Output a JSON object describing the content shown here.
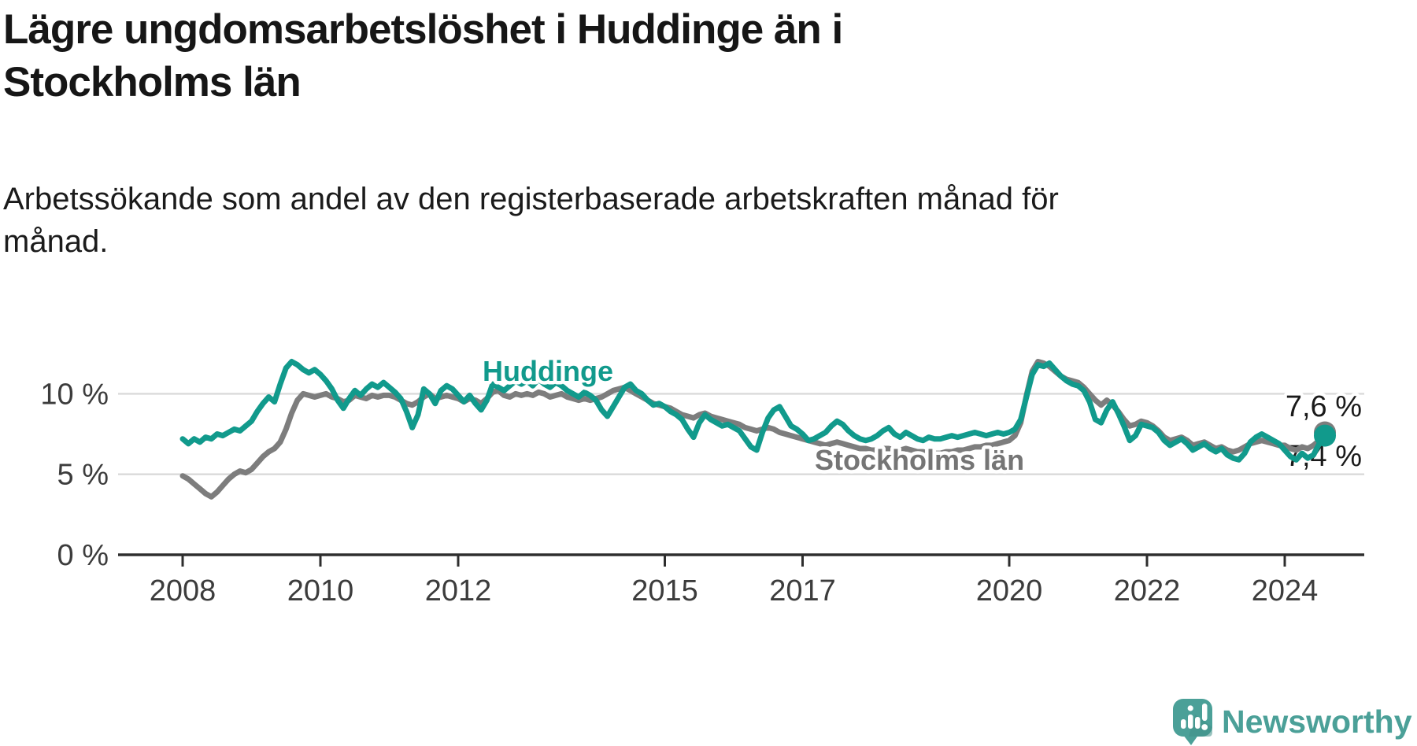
{
  "header": {
    "title_line1": "Lägre ungdomsarbetslöshet i Huddinge än i",
    "title_line2": "Stockholms län",
    "subtitle_line1": "Arbetssökande som andel av den registerbaserade arbetskraften månad för",
    "subtitle_line2": "månad."
  },
  "chart_data": {
    "type": "line",
    "title": "Lägre ungdomsarbetslöshet i Huddinge än i Stockholms län",
    "subtitle": "Arbetssökande som andel av den registerbaserade arbetskraften månad för månad.",
    "x_start": "2008-01",
    "x_end": "2024-08",
    "frequency": "monthly",
    "unit": "%",
    "ylim": [
      0,
      12.5
    ],
    "grid": "horizontal",
    "x_ticks": [
      2008,
      2010,
      2012,
      2015,
      2017,
      2020,
      2022,
      2024
    ],
    "y_ticks": [
      {
        "v": 0,
        "label": "0 %"
      },
      {
        "v": 5,
        "label": "5 %"
      },
      {
        "v": 10,
        "label": "10 %"
      }
    ],
    "series": [
      {
        "name": "Huddinge",
        "slug": "huddinge",
        "color": "#119a8c",
        "end_value": 7.4,
        "end_label": "7,4 %",
        "end_dot": true,
        "values": [
          7.2,
          6.9,
          7.2,
          7.0,
          7.3,
          7.2,
          7.5,
          7.4,
          7.6,
          7.8,
          7.7,
          8.0,
          8.3,
          8.9,
          9.4,
          9.8,
          9.5,
          10.6,
          11.6,
          12.0,
          11.8,
          11.5,
          11.3,
          11.5,
          11.2,
          10.8,
          10.3,
          9.6,
          9.1,
          9.7,
          10.2,
          9.9,
          10.3,
          10.6,
          10.4,
          10.7,
          10.4,
          10.1,
          9.7,
          8.9,
          7.9,
          8.7,
          10.3,
          10.0,
          9.4,
          10.2,
          10.5,
          10.3,
          9.9,
          9.5,
          9.9,
          9.4,
          9.0,
          9.6,
          10.6,
          10.4,
          10.2,
          10.5,
          10.8,
          10.6,
          10.8,
          10.5,
          10.9,
          10.6,
          10.4,
          10.7,
          10.5,
          10.2,
          10.0,
          9.8,
          10.1,
          9.9,
          9.6,
          9.0,
          8.6,
          9.2,
          9.8,
          10.4,
          10.6,
          10.2,
          10.0,
          9.6,
          9.3,
          9.4,
          9.2,
          8.9,
          8.7,
          8.4,
          7.8,
          7.3,
          8.2,
          8.7,
          8.4,
          8.2,
          8.0,
          8.1,
          7.9,
          7.7,
          7.2,
          6.7,
          6.5,
          7.6,
          8.5,
          9.0,
          9.2,
          8.6,
          8.0,
          7.8,
          7.5,
          7.1,
          7.2,
          7.4,
          7.6,
          8.0,
          8.3,
          8.1,
          7.7,
          7.4,
          7.2,
          7.1,
          7.2,
          7.4,
          7.7,
          7.9,
          7.5,
          7.3,
          7.6,
          7.4,
          7.2,
          7.1,
          7.3,
          7.2,
          7.2,
          7.3,
          7.4,
          7.3,
          7.4,
          7.5,
          7.6,
          7.5,
          7.4,
          7.5,
          7.6,
          7.5,
          7.6,
          7.8,
          8.4,
          9.8,
          11.2,
          11.8,
          11.7,
          11.9,
          11.5,
          11.1,
          10.8,
          10.6,
          10.5,
          10.2,
          9.5,
          8.4,
          8.2,
          9.0,
          9.5,
          8.8,
          8.0,
          7.1,
          7.4,
          8.1,
          8.0,
          7.9,
          7.6,
          7.1,
          6.8,
          7.0,
          7.2,
          6.9,
          6.5,
          6.7,
          6.9,
          6.6,
          6.4,
          6.6,
          6.2,
          6.0,
          5.9,
          6.3,
          7.0,
          7.3,
          7.5,
          7.3,
          7.1,
          6.9,
          6.5,
          6.1,
          5.9,
          6.3,
          6.0,
          6.2,
          6.9,
          7.4
        ]
      },
      {
        "name": "Stockholms län",
        "slug": "stockholms-lan",
        "color": "#7d7d7d",
        "end_value": 7.6,
        "end_label": "7,6 %",
        "end_dot": true,
        "values": [
          4.9,
          4.7,
          4.4,
          4.1,
          3.8,
          3.6,
          3.9,
          4.3,
          4.7,
          5.0,
          5.2,
          5.1,
          5.3,
          5.7,
          6.1,
          6.4,
          6.6,
          7.0,
          7.8,
          8.8,
          9.6,
          10.0,
          9.9,
          9.8,
          9.9,
          10.0,
          9.8,
          9.7,
          9.5,
          9.6,
          9.9,
          9.8,
          9.7,
          9.9,
          9.8,
          9.9,
          9.9,
          9.8,
          9.6,
          9.4,
          9.3,
          9.5,
          9.8,
          10.0,
          9.7,
          9.8,
          9.9,
          9.8,
          9.7,
          9.5,
          9.7,
          9.6,
          9.4,
          9.7,
          10.1,
          10.2,
          9.9,
          9.8,
          10.0,
          9.9,
          10.0,
          9.9,
          10.1,
          10.0,
          9.8,
          9.9,
          10.0,
          9.8,
          9.7,
          9.6,
          9.7,
          9.6,
          9.7,
          9.8,
          10.0,
          10.2,
          10.3,
          10.4,
          10.2,
          10.0,
          9.8,
          9.6,
          9.4,
          9.3,
          9.2,
          9.1,
          8.9,
          8.7,
          8.6,
          8.5,
          8.7,
          8.8,
          8.6,
          8.5,
          8.4,
          8.3,
          8.2,
          8.1,
          7.9,
          7.8,
          7.7,
          7.8,
          7.9,
          7.8,
          7.6,
          7.5,
          7.4,
          7.3,
          7.2,
          7.1,
          7.0,
          6.9,
          6.8,
          6.9,
          7.0,
          6.9,
          6.8,
          6.7,
          6.6,
          6.6,
          6.5,
          6.5,
          6.6,
          6.6,
          6.5,
          6.5,
          6.6,
          6.5,
          6.4,
          6.4,
          6.3,
          6.3,
          6.3,
          6.4,
          6.4,
          6.5,
          6.5,
          6.6,
          6.7,
          6.7,
          6.8,
          6.8,
          6.9,
          7.0,
          7.1,
          7.4,
          8.2,
          9.9,
          11.4,
          12.0,
          11.9,
          11.7,
          11.4,
          11.1,
          10.9,
          10.8,
          10.7,
          10.4,
          10.0,
          9.6,
          9.3,
          9.6,
          9.3,
          8.9,
          8.4,
          8.0,
          8.1,
          8.3,
          8.2,
          8.0,
          7.7,
          7.3,
          7.1,
          7.2,
          7.3,
          7.1,
          6.8,
          6.9,
          7.0,
          6.8,
          6.6,
          6.7,
          6.5,
          6.4,
          6.5,
          6.7,
          6.9,
          7.0,
          7.1,
          7.0,
          6.9,
          6.8,
          6.8,
          6.6,
          6.5,
          6.7,
          6.6,
          6.8,
          7.1,
          7.6
        ]
      }
    ],
    "annotations": {
      "series_labels": [
        "Huddinge",
        "Stockholms län"
      ],
      "end_value_labels": [
        "7,4 %",
        "7,6 %"
      ]
    }
  },
  "colors": {
    "huddinge": "#119a8c",
    "stockholms_lan": "#7d7d7d",
    "stockholms_label": "#757575",
    "grid": "#dadada",
    "axis": "#2e2e2e",
    "tick_text": "#3c3c3c",
    "end_label_text": "#1a1a1a",
    "brand": "#4ba098"
  },
  "footer": {
    "brand": "Newsworthy"
  }
}
